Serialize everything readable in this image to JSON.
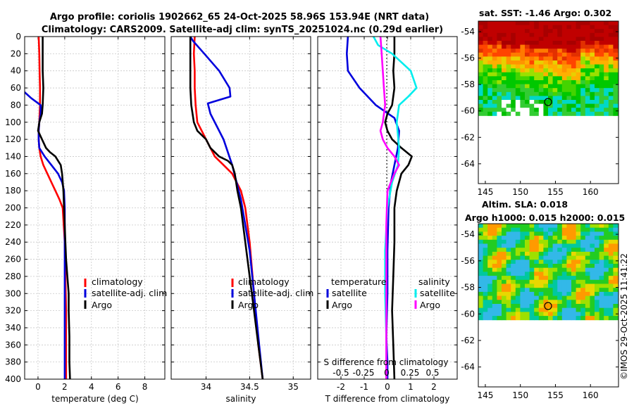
{
  "title_line1": "Argo profile: coriolis 1902662_65 24-Oct-2025 58.96S 153.94E (NRT data)",
  "title_line2": "Climatology: CARS2009. Satellite-adj clim: synTS_20251024.nc (0.29d earlier)",
  "copyright": "©IMOS 29-Oct-2025 11:41:22",
  "colors": {
    "climatology": "#ff0000",
    "satellite": "#0000dd",
    "argo": "#000000",
    "salinity_sat": "#00eeee",
    "salinity_argo": "#ff00ff"
  },
  "chart_data": [
    {
      "type": "line",
      "name": "temperature",
      "xlabel": "temperature (deg C)",
      "ylabel": "",
      "xlim": [
        -1,
        9.5
      ],
      "ylim": [
        0,
        400
      ],
      "xticks": [
        "0",
        "2",
        "4",
        "6",
        "8"
      ],
      "xtick_values": [
        0,
        2,
        4,
        6,
        8
      ],
      "yticks": [
        "0",
        "20",
        "40",
        "60",
        "80",
        "100",
        "120",
        "140",
        "160",
        "180",
        "200",
        "220",
        "240",
        "260",
        "280",
        "300",
        "320",
        "340",
        "360",
        "380",
        "400"
      ],
      "series": [
        {
          "name": "climatology",
          "color": "#ff0000",
          "x": [
            0.05,
            0.1,
            0.12,
            0.15,
            0.15,
            0.1,
            0.05,
            0.05,
            0.1,
            0.2,
            0.4,
            0.7,
            1.0,
            1.3,
            1.6,
            1.85,
            2.0,
            2.05,
            2.1,
            2.1,
            2.1,
            2.1
          ],
          "y": [
            0,
            20,
            40,
            60,
            80,
            100,
            110,
            120,
            130,
            140,
            150,
            160,
            170,
            180,
            190,
            200,
            240,
            280,
            320,
            360,
            380,
            400
          ]
        },
        {
          "name": "satellite-adj. clim",
          "color": "#0000dd",
          "x": [
            -1,
            -0.5,
            0.2,
            0.2,
            0.1,
            0.05,
            0.05,
            0.1,
            0.5,
            1.0,
            1.5,
            1.8,
            1.95,
            2.0,
            2.0,
            2.0,
            2.0,
            2.0
          ],
          "y": [
            65,
            72,
            80,
            90,
            100,
            110,
            120,
            130,
            140,
            150,
            160,
            170,
            180,
            200,
            240,
            300,
            360,
            400
          ]
        },
        {
          "name": "Argo",
          "color": "#000000",
          "x": [
            0.35,
            0.35,
            0.35,
            0.4,
            0.35,
            0.3,
            0.1,
            0.0,
            0.3,
            0.6,
            0.9,
            1.3,
            1.7,
            1.8,
            1.9,
            1.95,
            2.0,
            2.05,
            2.1,
            2.2,
            2.3,
            2.3,
            2.35,
            2.35,
            2.4
          ],
          "y": [
            0,
            20,
            40,
            60,
            80,
            90,
            100,
            110,
            120,
            130,
            135,
            140,
            150,
            160,
            180,
            200,
            220,
            240,
            260,
            280,
            300,
            320,
            350,
            380,
            400
          ]
        }
      ],
      "legend": [
        "climatology",
        "satellite-adj. clim",
        "Argo"
      ]
    },
    {
      "type": "line",
      "name": "salinity",
      "xlabel": "salinity",
      "ylabel": "",
      "xlim": [
        33.6,
        35.2
      ],
      "ylim": [
        0,
        400
      ],
      "xticks": [
        "34",
        "34.5",
        "35"
      ],
      "xtick_values": [
        34,
        34.5,
        35
      ],
      "series": [
        {
          "name": "climatology",
          "color": "#ff0000",
          "x": [
            33.87,
            33.86,
            33.87,
            33.87,
            33.88,
            33.9,
            33.95,
            34.0,
            34.05,
            34.1,
            34.2,
            34.3,
            34.35,
            34.4,
            34.45,
            34.5,
            34.55,
            34.6,
            34.65
          ],
          "y": [
            0,
            20,
            40,
            60,
            80,
            100,
            110,
            120,
            130,
            140,
            150,
            160,
            170,
            180,
            200,
            240,
            300,
            360,
            400
          ]
        },
        {
          "name": "satellite-adj. clim",
          "color": "#0000dd",
          "x": [
            33.82,
            33.85,
            33.98,
            34.15,
            34.27,
            34.28,
            34.02,
            34.05,
            34.2,
            34.3,
            34.35,
            34.4,
            34.45,
            34.5,
            34.55,
            34.6,
            34.65
          ],
          "y": [
            0,
            5,
            20,
            40,
            60,
            70,
            78,
            90,
            120,
            150,
            170,
            190,
            220,
            250,
            300,
            350,
            400
          ]
        },
        {
          "name": "Argo",
          "color": "#000000",
          "x": [
            33.82,
            33.82,
            33.82,
            33.82,
            33.83,
            33.86,
            33.9,
            34.0,
            34.05,
            34.15,
            34.25,
            34.3,
            34.33,
            34.36,
            34.4,
            34.45,
            34.5,
            34.55,
            34.6,
            34.65
          ],
          "y": [
            0,
            20,
            40,
            60,
            80,
            100,
            110,
            120,
            130,
            140,
            145,
            150,
            160,
            180,
            200,
            240,
            280,
            320,
            360,
            400
          ]
        }
      ],
      "legend": [
        "climatology",
        "satellite-adj. clim",
        "Argo"
      ]
    },
    {
      "type": "line",
      "name": "difference",
      "xlabel": "T difference from climatology",
      "ylabel": "",
      "xlim": [
        -3,
        3
      ],
      "ylim": [
        0,
        400
      ],
      "xticks": [
        "-2",
        "-1",
        "0",
        "1",
        "2"
      ],
      "xtick_values": [
        -2,
        -1,
        0,
        1,
        2
      ],
      "top_axis_label": "S difference from climatology",
      "top_ticks": [
        "-0.5",
        "-0.25",
        "0",
        "0.25",
        "0.5"
      ],
      "series": [
        {
          "name": "temperature satellite",
          "color": "#0000dd",
          "x": [
            -1.7,
            -1.75,
            -1.7,
            -1.2,
            -0.5,
            0.3,
            0.5,
            0.45,
            0.3,
            0.15,
            0.05,
            0.0,
            0.0,
            -0.05,
            0.0,
            0.0
          ],
          "y": [
            0,
            20,
            40,
            60,
            80,
            95,
            110,
            130,
            150,
            170,
            200,
            250,
            300,
            350,
            380,
            400
          ]
        },
        {
          "name": "temperature Argo",
          "color": "#000000",
          "x": [
            0.3,
            0.3,
            0.25,
            0.3,
            0.2,
            0.0,
            -0.1,
            0.0,
            0.2,
            0.6,
            1.05,
            0.9,
            0.6,
            0.4,
            0.3,
            0.3,
            0.25,
            0.2,
            0.25,
            0.3
          ],
          "y": [
            0,
            20,
            40,
            60,
            80,
            90,
            100,
            110,
            120,
            130,
            140,
            150,
            160,
            180,
            200,
            240,
            280,
            320,
            360,
            400
          ]
        },
        {
          "name": "salinity satellite",
          "color": "#00eeee",
          "x": [
            -0.6,
            -0.4,
            0.2,
            1.0,
            1.25,
            0.9,
            0.5,
            0.4,
            0.5,
            0.45,
            0.2,
            0.0,
            -0.1,
            -0.1,
            -0.05,
            -0.05
          ],
          "y": [
            0,
            10,
            20,
            40,
            60,
            70,
            80,
            100,
            130,
            150,
            170,
            200,
            250,
            300,
            350,
            400
          ]
        },
        {
          "name": "salinity Argo",
          "color": "#ff00ff",
          "x": [
            -0.3,
            -0.25,
            -0.2,
            -0.15,
            -0.1,
            -0.2,
            -0.3,
            -0.2,
            0.0,
            0.3,
            0.5,
            0.3,
            0.0,
            -0.05,
            -0.05,
            -0.05
          ],
          "y": [
            0,
            20,
            40,
            60,
            80,
            100,
            110,
            120,
            130,
            140,
            150,
            160,
            180,
            220,
            300,
            400
          ]
        }
      ],
      "legend_temperature": {
        "title": "temperature",
        "items": [
          "satellite",
          "Argo"
        ]
      },
      "legend_salinity": {
        "title": "salinity",
        "items": [
          "satellite",
          "Argo"
        ]
      }
    },
    {
      "type": "heatmap",
      "name": "sat_sst_map",
      "title": "sat. SST: -1.46 Argo: 0.302",
      "xlim": [
        144,
        164
      ],
      "ylim": [
        -65.5,
        -53.2
      ],
      "xticks": [
        "145",
        "150",
        "155",
        "160"
      ],
      "yticks": [
        "-54",
        "-56",
        "-58",
        "-60",
        "-62",
        "-64"
      ],
      "argo_position": {
        "lon": 153.94,
        "lat": -58.96
      }
    },
    {
      "type": "heatmap",
      "name": "altim_sla_map",
      "title_line1": "Altim. SLA: 0.018",
      "title_line2": "Argo h1000: 0.015 h2000: 0.015",
      "xlim": [
        144,
        164
      ],
      "ylim": [
        -65.5,
        -53.2
      ],
      "xticks": [
        "145",
        "150",
        "155",
        "160"
      ],
      "yticks": [
        "-54",
        "-56",
        "-58",
        "-60",
        "-62",
        "-64"
      ],
      "argo_position": {
        "lon": 153.94,
        "lat": -58.96
      }
    }
  ]
}
